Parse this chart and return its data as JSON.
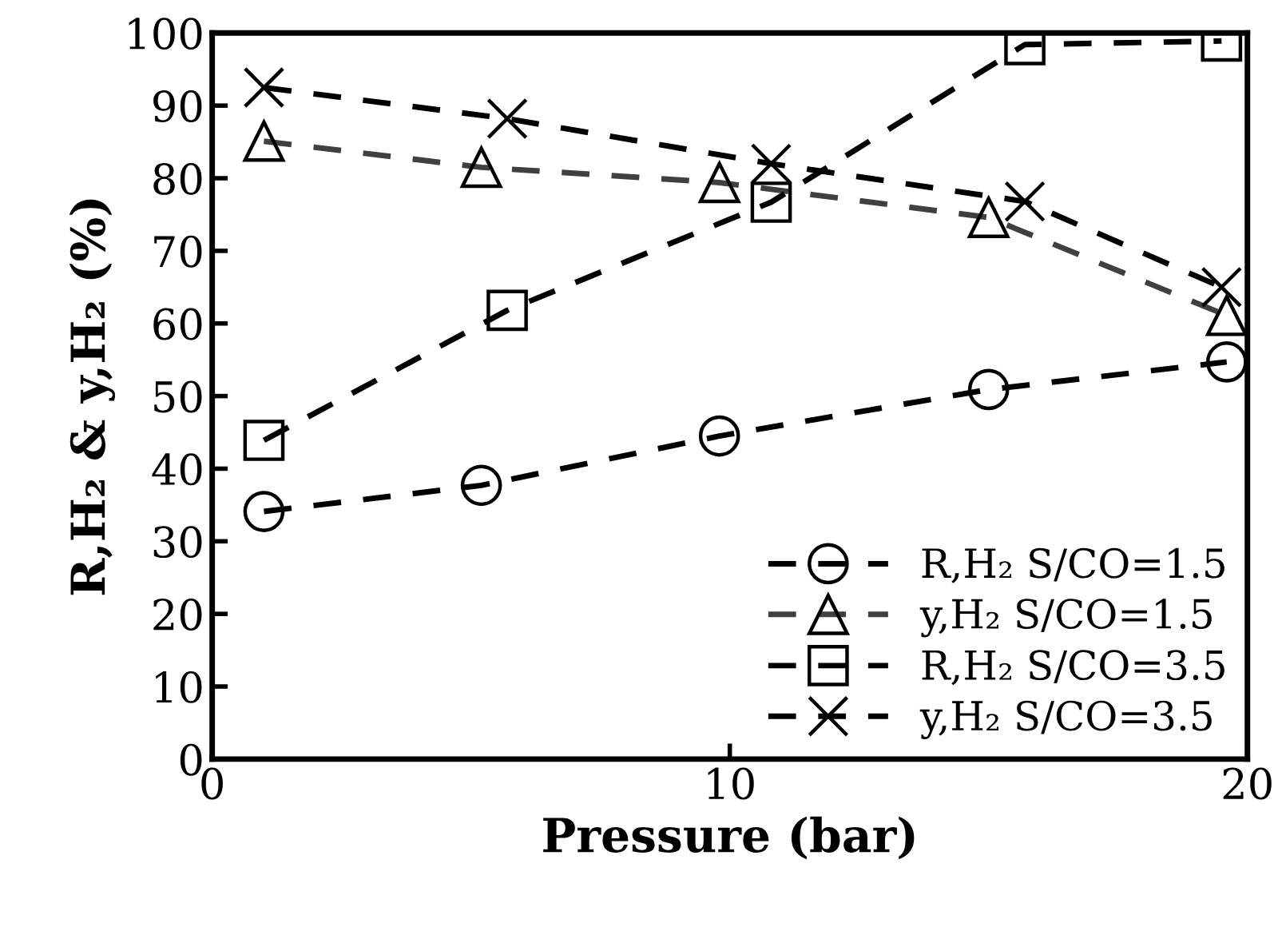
{
  "chart_data": {
    "type": "line",
    "xlabel": "Pressure (bar)",
    "ylabel": "R,H₂ & y,H₂ (%)",
    "xlim": [
      0,
      20
    ],
    "xticks": [
      0,
      10,
      20
    ],
    "ylim": [
      0,
      100
    ],
    "yticks": [
      0,
      10,
      20,
      30,
      40,
      50,
      60,
      70,
      80,
      90,
      100
    ],
    "grid": false,
    "legend": "bottom right",
    "line_style": "dashed",
    "series": [
      {
        "name": "R,H₂ S/CO=1.5",
        "color": "#000000",
        "marker": "circle",
        "x": [
          1,
          5.2,
          9.8,
          15,
          19.6
        ],
        "values": [
          34.1,
          37.7,
          44.5,
          50.9,
          54.7
        ]
      },
      {
        "name": "y,H₂ S/CO=1.5",
        "color": "#404040",
        "marker": "triangle",
        "x": [
          1,
          5.2,
          9.8,
          15,
          19.6
        ],
        "values": [
          85.1,
          81.5,
          79.4,
          74.6,
          61.1
        ]
      },
      {
        "name": "R,H₂ S/CO=3.5",
        "color": "#000000",
        "marker": "square",
        "x": [
          1,
          5.7,
          10.8,
          15.7,
          19.5
        ],
        "values": [
          43.9,
          61.8,
          76.7,
          98.4,
          98.9
        ]
      },
      {
        "name": "y,H₂ S/CO=3.5",
        "color": "#000000",
        "marker": "cross",
        "x": [
          1,
          5.7,
          10.8,
          15.7,
          19.5
        ],
        "values": [
          92.5,
          88.2,
          82.0,
          76.8,
          65.0
        ]
      }
    ]
  }
}
